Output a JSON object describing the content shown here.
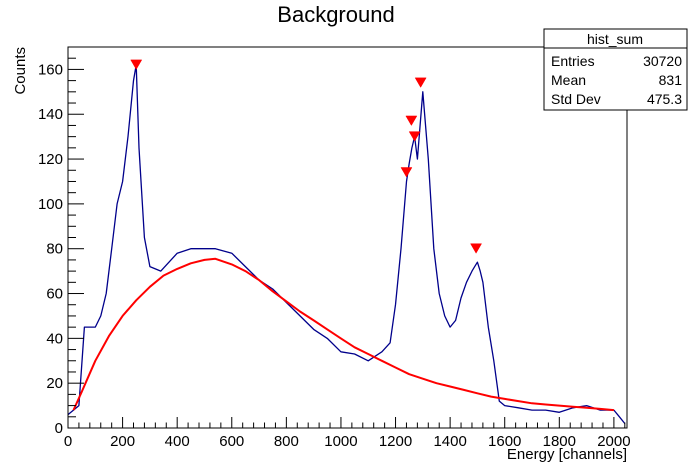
{
  "chart_data": {
    "type": "line",
    "title": "Background",
    "xlabel": "Energy [channels]",
    "ylabel": "Counts",
    "xlim": [
      0,
      2048
    ],
    "ylim": [
      0,
      170
    ],
    "x_ticks": [
      0,
      200,
      400,
      600,
      800,
      1000,
      1200,
      1400,
      1600,
      1800,
      2000
    ],
    "y_ticks": [
      0,
      20,
      40,
      60,
      80,
      100,
      120,
      140,
      160
    ],
    "grid": false,
    "stats_box": {
      "name": "hist_sum",
      "rows": [
        {
          "label": "Entries",
          "value": "30720"
        },
        {
          "label": "Mean",
          "value": "831"
        },
        {
          "label": "Std Dev",
          "value": "475.3"
        }
      ]
    },
    "series": [
      {
        "role": "histogram",
        "color": "#00008b",
        "x": [
          0,
          20,
          40,
          60,
          80,
          100,
          120,
          140,
          160,
          180,
          200,
          220,
          240,
          250,
          260,
          280,
          300,
          340,
          400,
          450,
          500,
          540,
          600,
          650,
          700,
          750,
          800,
          850,
          900,
          950,
          1000,
          1050,
          1100,
          1150,
          1180,
          1200,
          1220,
          1240,
          1250,
          1260,
          1270,
          1280,
          1290,
          1300,
          1320,
          1340,
          1360,
          1380,
          1400,
          1420,
          1440,
          1460,
          1480,
          1490,
          1500,
          1510,
          1520,
          1540,
          1560,
          1580,
          1600,
          1650,
          1700,
          1750,
          1800,
          1850,
          1900,
          1950,
          2000,
          2020,
          2040
        ],
        "values": [
          6,
          8,
          10,
          45,
          45,
          45,
          50,
          60,
          80,
          100,
          110,
          130,
          155,
          162,
          125,
          85,
          72,
          70,
          78,
          80,
          80,
          80,
          78,
          72,
          66,
          62,
          56,
          50,
          44,
          40,
          34,
          33,
          30,
          34,
          38,
          55,
          80,
          110,
          118,
          125,
          130,
          120,
          135,
          150,
          120,
          80,
          60,
          50,
          45,
          48,
          58,
          65,
          70,
          72,
          74,
          70,
          65,
          45,
          30,
          12,
          10,
          9,
          8,
          8,
          7,
          9,
          10,
          8,
          8,
          5,
          2
        ]
      },
      {
        "role": "background-fit",
        "color": "#ff0000",
        "x": [
          20,
          50,
          100,
          150,
          200,
          250,
          300,
          350,
          400,
          450,
          500,
          540,
          600,
          650,
          700,
          750,
          800,
          850,
          900,
          950,
          1000,
          1050,
          1100,
          1150,
          1200,
          1250,
          1300,
          1350,
          1400,
          1450,
          1500,
          1550,
          1600,
          1650,
          1700,
          1750,
          1800,
          1850,
          1900,
          1950,
          2000
        ],
        "values": [
          8,
          16,
          30,
          41,
          50,
          57,
          63,
          68,
          71,
          73.5,
          75,
          75.5,
          73,
          70,
          66,
          61,
          56.5,
          52,
          48,
          44,
          40,
          36,
          33,
          30,
          27,
          24,
          22,
          20,
          18.5,
          17,
          15.5,
          14,
          13,
          12,
          11,
          10.5,
          10,
          9.5,
          9,
          8.5,
          8
        ]
      }
    ],
    "peaks": [
      {
        "x": 250,
        "y": 162
      },
      {
        "x": 1240,
        "y": 114
      },
      {
        "x": 1258,
        "y": 137
      },
      {
        "x": 1270,
        "y": 130
      },
      {
        "x": 1292,
        "y": 154
      },
      {
        "x": 1495,
        "y": 80
      }
    ]
  }
}
